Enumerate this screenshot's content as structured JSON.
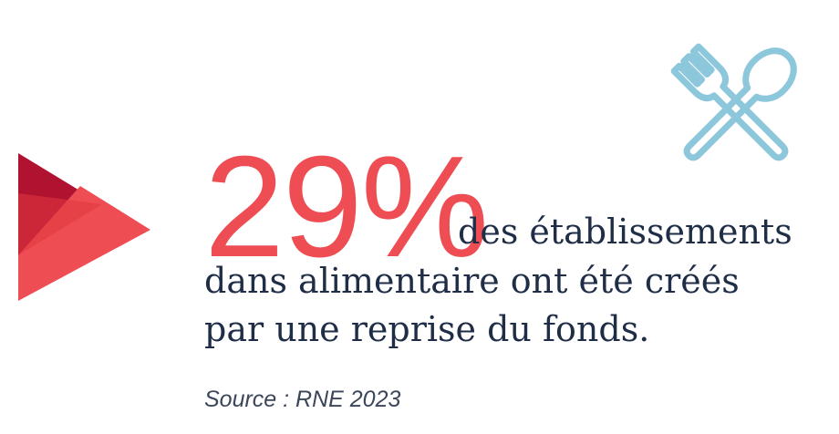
{
  "stat": {
    "value": "29%",
    "line1": "des établissements",
    "line2": "dans alimentaire ont été créés",
    "line3": "par une reprise du fonds."
  },
  "source": "Source : RNE 2023",
  "icons": {
    "logo": "arrow-chevron-logo",
    "utensils": "fork-and-spoon-icon"
  },
  "colors": {
    "accent": "#ee4d53",
    "logo_dark": "#b0132f",
    "text": "#1f2d47",
    "icon": "#8dc7dc"
  }
}
